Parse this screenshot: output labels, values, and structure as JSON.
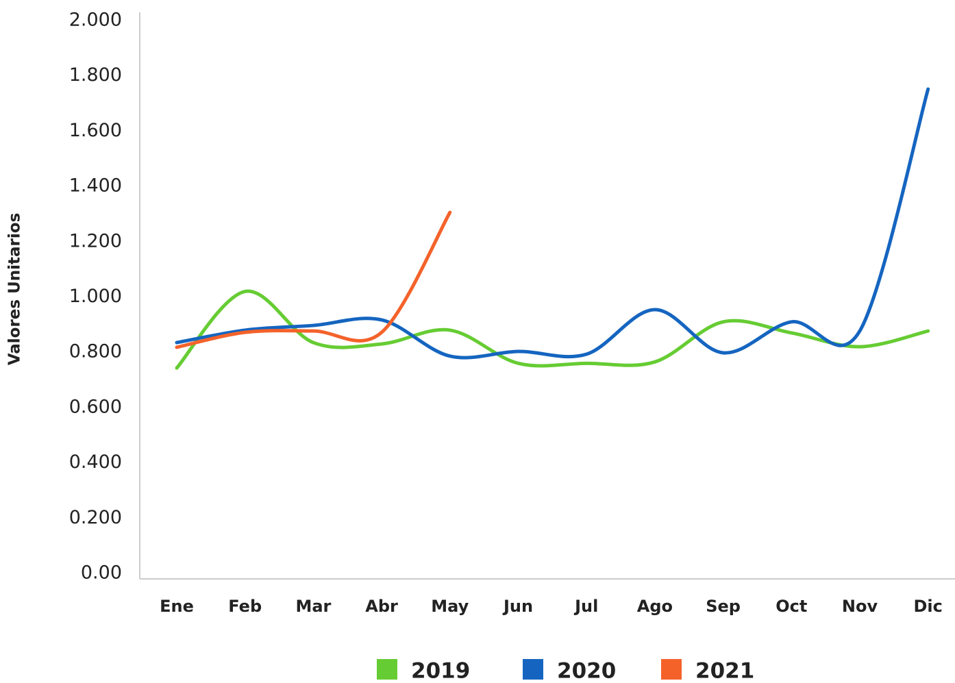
{
  "chart_data": {
    "type": "line",
    "y_label": "Valores Unitarios",
    "categories": [
      "Ene",
      "Feb",
      "Mar",
      "Abr",
      "May",
      "Jun",
      "Jul",
      "Ago",
      "Sep",
      "Oct",
      "Nov",
      "Dic"
    ],
    "series": [
      {
        "name": "2019",
        "color": "#66cc33",
        "values": [
          0.743,
          1.02,
          0.835,
          0.83,
          0.88,
          0.76,
          0.76,
          0.765,
          0.91,
          0.87,
          0.82,
          0.877
        ]
      },
      {
        "name": "2020",
        "color": "#1565c0",
        "values": [
          0.835,
          0.88,
          0.897,
          0.917,
          0.786,
          0.803,
          0.793,
          0.954,
          0.798,
          0.91,
          0.877,
          1.752
        ]
      },
      {
        "name": "2021",
        "color": "#f4622a",
        "values": [
          0.818,
          0.872,
          0.877,
          0.872,
          1.306,
          null,
          null,
          null,
          null,
          null,
          null,
          null
        ]
      }
    ],
    "ylim": [
      0,
      2
    ],
    "yticks": [
      {
        "value": 0,
        "label": "0.00"
      },
      {
        "value": 0.2,
        "label": "0.200"
      },
      {
        "value": 0.4,
        "label": "0.400"
      },
      {
        "value": 0.6,
        "label": "0.600"
      },
      {
        "value": 0.8,
        "label": "0.800"
      },
      {
        "value": 1,
        "label": "1.000"
      },
      {
        "value": 1.2,
        "label": "1.200"
      },
      {
        "value": 1.4,
        "label": "1.400"
      },
      {
        "value": 1.6,
        "label": "1.600"
      },
      {
        "value": 1.8,
        "label": "1.800"
      },
      {
        "value": 2,
        "label": "2.000"
      }
    ],
    "smooth": true
  }
}
